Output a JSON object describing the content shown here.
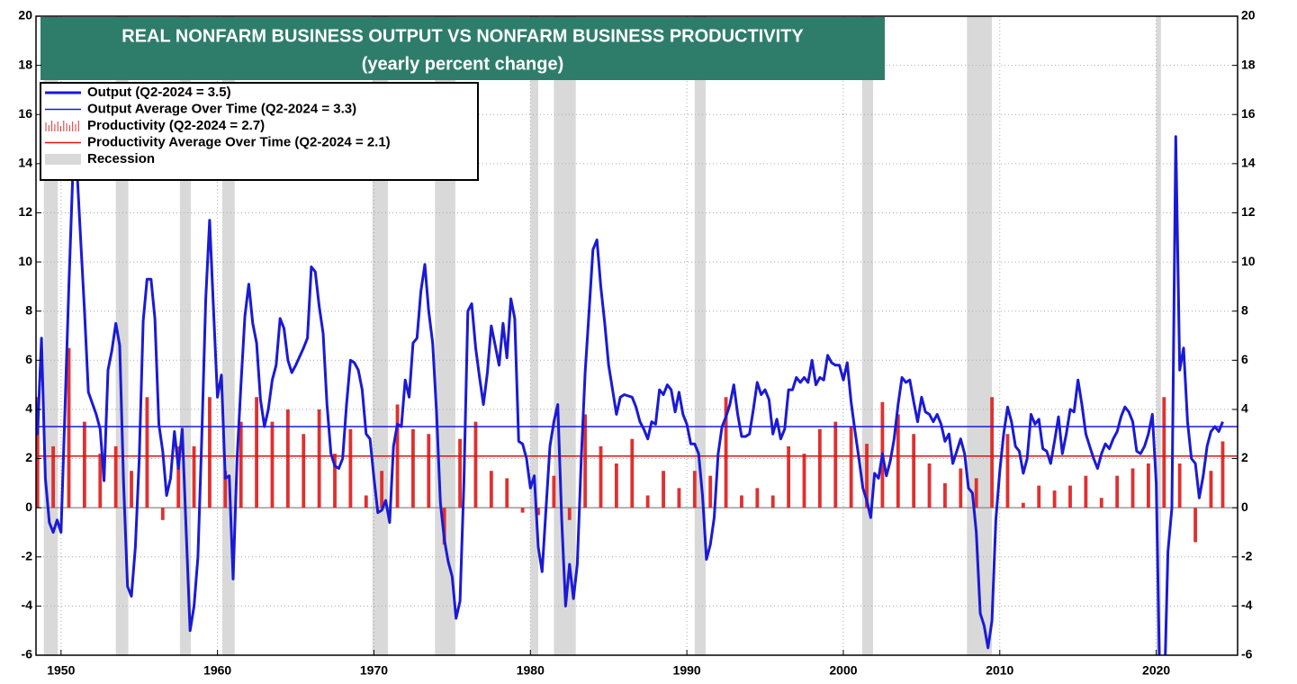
{
  "chart_data": {
    "type": "line",
    "title": "REAL NONFARM BUSINESS OUTPUT VS NONFARM BUSINESS PRODUCTIVITY",
    "subtitle": "(yearly percent change)",
    "xlim": [
      1948.4,
      2025.2
    ],
    "xticks": [
      1950,
      1960,
      1970,
      1980,
      1990,
      2000,
      2010,
      2020
    ],
    "ylim": [
      -6,
      20
    ],
    "yticks": [
      -6,
      -4,
      -2,
      0,
      2,
      4,
      6,
      8,
      10,
      12,
      14,
      16,
      18,
      20
    ],
    "y2lim": [
      -6,
      20
    ],
    "y2ticks": [
      -6,
      -4,
      -2,
      0,
      2,
      4,
      6,
      8,
      10,
      12,
      14,
      16,
      18,
      20
    ],
    "grid": true,
    "legend": "upper left",
    "recession_name": "Recession",
    "recession_color": "#d9d9d9",
    "recessions": [
      [
        1948.9,
        1949.8
      ],
      [
        1953.5,
        1954.3
      ],
      [
        1957.6,
        1958.3
      ],
      [
        1960.3,
        1961.1
      ],
      [
        1969.9,
        1970.9
      ],
      [
        1973.9,
        1975.2
      ],
      [
        1980.0,
        1980.5
      ],
      [
        1981.5,
        1982.9
      ],
      [
        1990.5,
        1991.2
      ],
      [
        2001.2,
        2001.9
      ],
      [
        2007.9,
        2009.5
      ],
      [
        2020.0,
        2020.3
      ]
    ],
    "series": [
      {
        "name": "Output (Q2-2024 = 3.5)",
        "color": "#1a1ad6",
        "kind": "line",
        "x": [
          1948.25,
          1948.5,
          1948.75,
          1949.0,
          1949.25,
          1949.5,
          1949.75,
          1950.0,
          1950.25,
          1950.5,
          1950.75,
          1951.0,
          1951.25,
          1951.5,
          1951.75,
          1952.25,
          1952.5,
          1952.75,
          1953.0,
          1953.25,
          1953.5,
          1953.75,
          1954.0,
          1954.25,
          1954.5,
          1954.75,
          1955.0,
          1955.25,
          1955.5,
          1955.75,
          1956.0,
          1956.25,
          1956.5,
          1956.75,
          1957.0,
          1957.25,
          1957.5,
          1957.75,
          1958.0,
          1958.25,
          1958.5,
          1958.75,
          1959.0,
          1959.25,
          1959.5,
          1959.75,
          1960.0,
          1960.25,
          1960.5,
          1960.75,
          1961.0,
          1961.25,
          1961.5,
          1961.75,
          1962.0,
          1962.25,
          1962.5,
          1962.75,
          1963.0,
          1963.25,
          1963.5,
          1963.75,
          1964.0,
          1964.25,
          1964.5,
          1964.75,
          1965.0,
          1965.5,
          1965.75,
          1966.0,
          1966.25,
          1966.5,
          1966.75,
          1967.0,
          1967.25,
          1967.5,
          1967.75,
          1968.0,
          1968.25,
          1968.5,
          1968.75,
          1969.0,
          1969.25,
          1969.5,
          1969.75,
          1970.0,
          1970.25,
          1970.5,
          1970.75,
          1971.0,
          1971.25,
          1971.5,
          1971.75,
          1972.0,
          1972.25,
          1972.5,
          1972.75,
          1973.0,
          1973.25,
          1973.5,
          1973.75,
          1974.0,
          1974.25,
          1974.5,
          1974.75,
          1975.0,
          1975.25,
          1975.5,
          1975.75,
          1976.0,
          1976.25,
          1976.5,
          1976.75,
          1977.0,
          1977.25,
          1977.5,
          1977.75,
          1978.0,
          1978.25,
          1978.5,
          1978.75,
          1979.0,
          1979.25,
          1979.5,
          1979.75,
          1980.0,
          1980.25,
          1980.5,
          1980.75,
          1981.0,
          1981.25,
          1981.5,
          1981.75,
          1982.0,
          1982.25,
          1982.5,
          1982.75,
          1983.0,
          1983.25,
          1983.5,
          1983.75,
          1984.0,
          1984.25,
          1984.5,
          1984.75,
          1985.0,
          1985.25,
          1985.5,
          1985.75,
          1986.0,
          1986.5,
          1986.75,
          1987.0,
          1987.25,
          1987.5,
          1987.75,
          1988.0,
          1988.25,
          1988.5,
          1988.75,
          1989.0,
          1989.25,
          1989.5,
          1989.75,
          1990.0,
          1990.25,
          1990.5,
          1990.75,
          1991.0,
          1991.25,
          1991.5,
          1991.75,
          1992.0,
          1992.25,
          1992.5,
          1992.75,
          1993.0,
          1993.25,
          1993.5,
          1993.75,
          1994.0,
          1994.25,
          1994.5,
          1994.75,
          1995.0,
          1995.25,
          1995.5,
          1995.75,
          1996.0,
          1996.25,
          1996.5,
          1996.75,
          1997.0,
          1997.25,
          1997.5,
          1997.75,
          1998.0,
          1998.25,
          1998.5,
          1998.75,
          1999.0,
          1999.25,
          1999.5,
          1999.75,
          2000.0,
          2000.25,
          2000.5,
          2000.75,
          2001.0,
          2001.25,
          2001.5,
          2001.75,
          2002.0,
          2002.25,
          2002.5,
          2002.75,
          2003.0,
          2003.25,
          2003.5,
          2003.75,
          2004.0,
          2004.25,
          2004.5,
          2004.75,
          2005.0,
          2005.25,
          2005.5,
          2005.75,
          2006.0,
          2006.25,
          2006.5,
          2006.75,
          2007.0,
          2007.25,
          2007.5,
          2007.75,
          2008.0,
          2008.25,
          2008.5,
          2008.75,
          2009.0,
          2009.25,
          2009.5,
          2009.75,
          2010.0,
          2010.25,
          2010.5,
          2010.75,
          2011.0,
          2011.25,
          2011.5,
          2011.75,
          2012.0,
          2012.25,
          2012.5,
          2012.75,
          2013.0,
          2013.25,
          2013.5,
          2013.75,
          2014.0,
          2014.25,
          2014.5,
          2014.75,
          2015.0,
          2015.25,
          2015.5,
          2015.75,
          2016.0,
          2016.25,
          2016.5,
          2016.75,
          2017.0,
          2017.25,
          2017.5,
          2017.75,
          2018.0,
          2018.25,
          2018.5,
          2018.75,
          2019.0,
          2019.25,
          2019.5,
          2019.75,
          2020.0,
          2020.25,
          2020.5,
          2020.75,
          2021.0,
          2021.25,
          2021.5,
          2021.75,
          2022.0,
          2022.25,
          2022.5,
          2022.75,
          2023.0,
          2023.25,
          2023.5,
          2023.75,
          2024.0,
          2024.25
        ],
        "values": [
          5.7,
          3.0,
          6.9,
          1.2,
          -0.6,
          -1.0,
          -0.5,
          -1.0,
          4,
          9,
          13.5,
          14,
          11,
          8,
          4.7,
          3.8,
          3.2,
          1.1,
          5.6,
          6.4,
          7.5,
          6.6,
          1,
          -3.2,
          -3.6,
          -1.6,
          2,
          7.6,
          9.3,
          9.3,
          7.7,
          3.4,
          2.3,
          0.5,
          1.2,
          3.1,
          1.6,
          3.2,
          -1,
          -5,
          -4,
          -2,
          3,
          8.5,
          11.7,
          8,
          4.5,
          5.4,
          1.2,
          1.3,
          -2.9,
          2,
          5,
          7.8,
          9.1,
          7.5,
          6.7,
          4.4,
          3.3,
          4,
          5.2,
          5.8,
          7.7,
          7.3,
          6,
          5.5,
          5.8,
          6.5,
          6.9,
          9.8,
          9.6,
          8.2,
          7.1,
          4.2,
          2.2,
          1.7,
          1.6,
          2.0,
          4.2,
          6,
          5.9,
          5.6,
          4.8,
          3,
          2.8,
          1.2,
          -0.2,
          -0.1,
          0.3,
          -0.6,
          2.5,
          3.4,
          3.3,
          5.2,
          4.5,
          6.7,
          6.9,
          8.8,
          9.9,
          8,
          6.7,
          3.9,
          0.2,
          -1.3,
          -2.2,
          -2.8,
          -4.5,
          -3.8,
          1,
          8,
          8.3,
          6.5,
          5.3,
          4.2,
          5.5,
          7.4,
          6.6,
          5.8,
          7.5,
          6.1,
          8.5,
          7.7,
          2.7,
          2.6,
          2,
          0.8,
          1.3,
          -1.6,
          -2.6,
          0,
          2.5,
          3.5,
          4.2,
          -0.5,
          -4.0,
          -2.3,
          -3.7,
          -2.3,
          2,
          5.5,
          8,
          10.5,
          10.9,
          9,
          7.5,
          5.8,
          4.8,
          3.8,
          4.5,
          4.6,
          4.5,
          4.1,
          3.5,
          3.2,
          2.8,
          3.5,
          3.4,
          4.8,
          4.6,
          5,
          4.8,
          3.9,
          4.7,
          3.8,
          3.4,
          2.6,
          2.6,
          2.2,
          0.5,
          -2.1,
          -1.5,
          -0.4,
          2.2,
          3.3,
          3.7,
          4.2,
          5.0,
          3.8,
          2.9,
          2.9,
          3,
          4,
          5.1,
          4.6,
          4.8,
          4.4,
          3.0,
          3.6,
          2.8,
          3.2,
          4.8,
          4.8,
          5.3,
          5.1,
          5.3,
          5.1,
          6,
          5,
          5.3,
          5.2,
          6.2,
          5.9,
          5.8,
          5.8,
          5.2,
          5.9,
          4.3,
          3.1,
          2,
          0.8,
          0.3,
          -0.4,
          1.4,
          1.2,
          2.2,
          1.3,
          1.9,
          2.8,
          4.2,
          5.3,
          5.1,
          5.2,
          4.3,
          3.5,
          4.5,
          3.9,
          3.8,
          3.5,
          3.8,
          3.4,
          2.7,
          3.0,
          1.8,
          2.3,
          2.8,
          2.2,
          0.8,
          0.6,
          -1,
          -4.3,
          -4.8,
          -5.7,
          -4.6,
          -0.5,
          1.5,
          3.0,
          4.1,
          3.5,
          2.5,
          2.3,
          1.4,
          2,
          3.8,
          3.4,
          3.6,
          2.4,
          2.3,
          1.8,
          2.7,
          3.7,
          2.2,
          3.0,
          4.0,
          3.9,
          5.2,
          4.2,
          3.0,
          2.5,
          2.0,
          1.6,
          2.2,
          2.6,
          2.4,
          2.8,
          3.1,
          3.7,
          4.1,
          3.9,
          3.5,
          2.3,
          2.2,
          2.5,
          3.0,
          3.8,
          1.0,
          -8,
          -8,
          -1.8,
          0,
          15.1,
          5.6,
          6.5,
          3.5,
          2,
          1.8,
          0.4,
          1.3,
          2.5,
          3.1,
          3.3,
          3.1,
          3.5
        ]
      },
      {
        "name": "Output Average Over Time (Q2-2024 = 3.3)",
        "color": "#1a1ad6",
        "kind": "average",
        "value": 3.3
      },
      {
        "name": "Productivity  (Q2-2024 = 2.7)",
        "color": "#e03030",
        "kind": "bar",
        "x": [
          1948.5,
          1949.5,
          1950.5,
          1951.5,
          1952.5,
          1953.5,
          1954.5,
          1955.5,
          1956.5,
          1957.5,
          1958.5,
          1959.5,
          1960.5,
          1961.5,
          1962.5,
          1963.5,
          1964.5,
          1965.5,
          1966.5,
          1967.5,
          1968.5,
          1969.5,
          1970.5,
          1971.5,
          1972.5,
          1973.5,
          1974.5,
          1975.5,
          1976.5,
          1977.5,
          1978.5,
          1979.5,
          1980.5,
          1981.5,
          1982.5,
          1983.5,
          1984.5,
          1985.5,
          1986.5,
          1987.5,
          1988.5,
          1989.5,
          1990.5,
          1991.5,
          1992.5,
          1993.5,
          1994.5,
          1995.5,
          1996.5,
          1997.5,
          1998.5,
          1999.5,
          2000.5,
          2001.5,
          2002.5,
          2003.5,
          2004.5,
          2005.5,
          2006.5,
          2007.5,
          2008.5,
          2009.5,
          2010.5,
          2011.5,
          2012.5,
          2013.5,
          2014.5,
          2015.5,
          2016.5,
          2017.5,
          2018.5,
          2019.5,
          2020.5,
          2021.5,
          2022.5,
          2023.5,
          2024.25
        ],
        "values": [
          4.5,
          2.5,
          6.5,
          3.5,
          2.2,
          2.5,
          1.5,
          4.5,
          -0.5,
          2.5,
          2.5,
          4.5,
          1.5,
          3.5,
          4.5,
          3.5,
          4,
          3,
          4,
          2.2,
          3.2,
          0.5,
          1.5,
          4.2,
          3.2,
          3,
          -1.5,
          2.8,
          3.5,
          1.5,
          1.2,
          -0.2,
          -0.3,
          1.3,
          -0.5,
          3.8,
          2.5,
          1.8,
          2.8,
          0.5,
          1.5,
          0.8,
          1.5,
          1.3,
          4.5,
          0.5,
          0.8,
          0.5,
          2.5,
          2.2,
          3.2,
          3.5,
          3.3,
          2.6,
          4.3,
          3.8,
          3.0,
          1.8,
          1.0,
          1.6,
          1.2,
          4.5,
          3.0,
          0.2,
          0.9,
          0.7,
          0.9,
          1.3,
          0.4,
          1.3,
          1.6,
          1.8,
          4.5,
          1.8,
          -1.4,
          1.5,
          2.7
        ]
      },
      {
        "name": "Productivity Average Over Time (Q2-2024 = 2.1)",
        "color": "#e01010",
        "kind": "average",
        "value": 2.1
      }
    ]
  }
}
